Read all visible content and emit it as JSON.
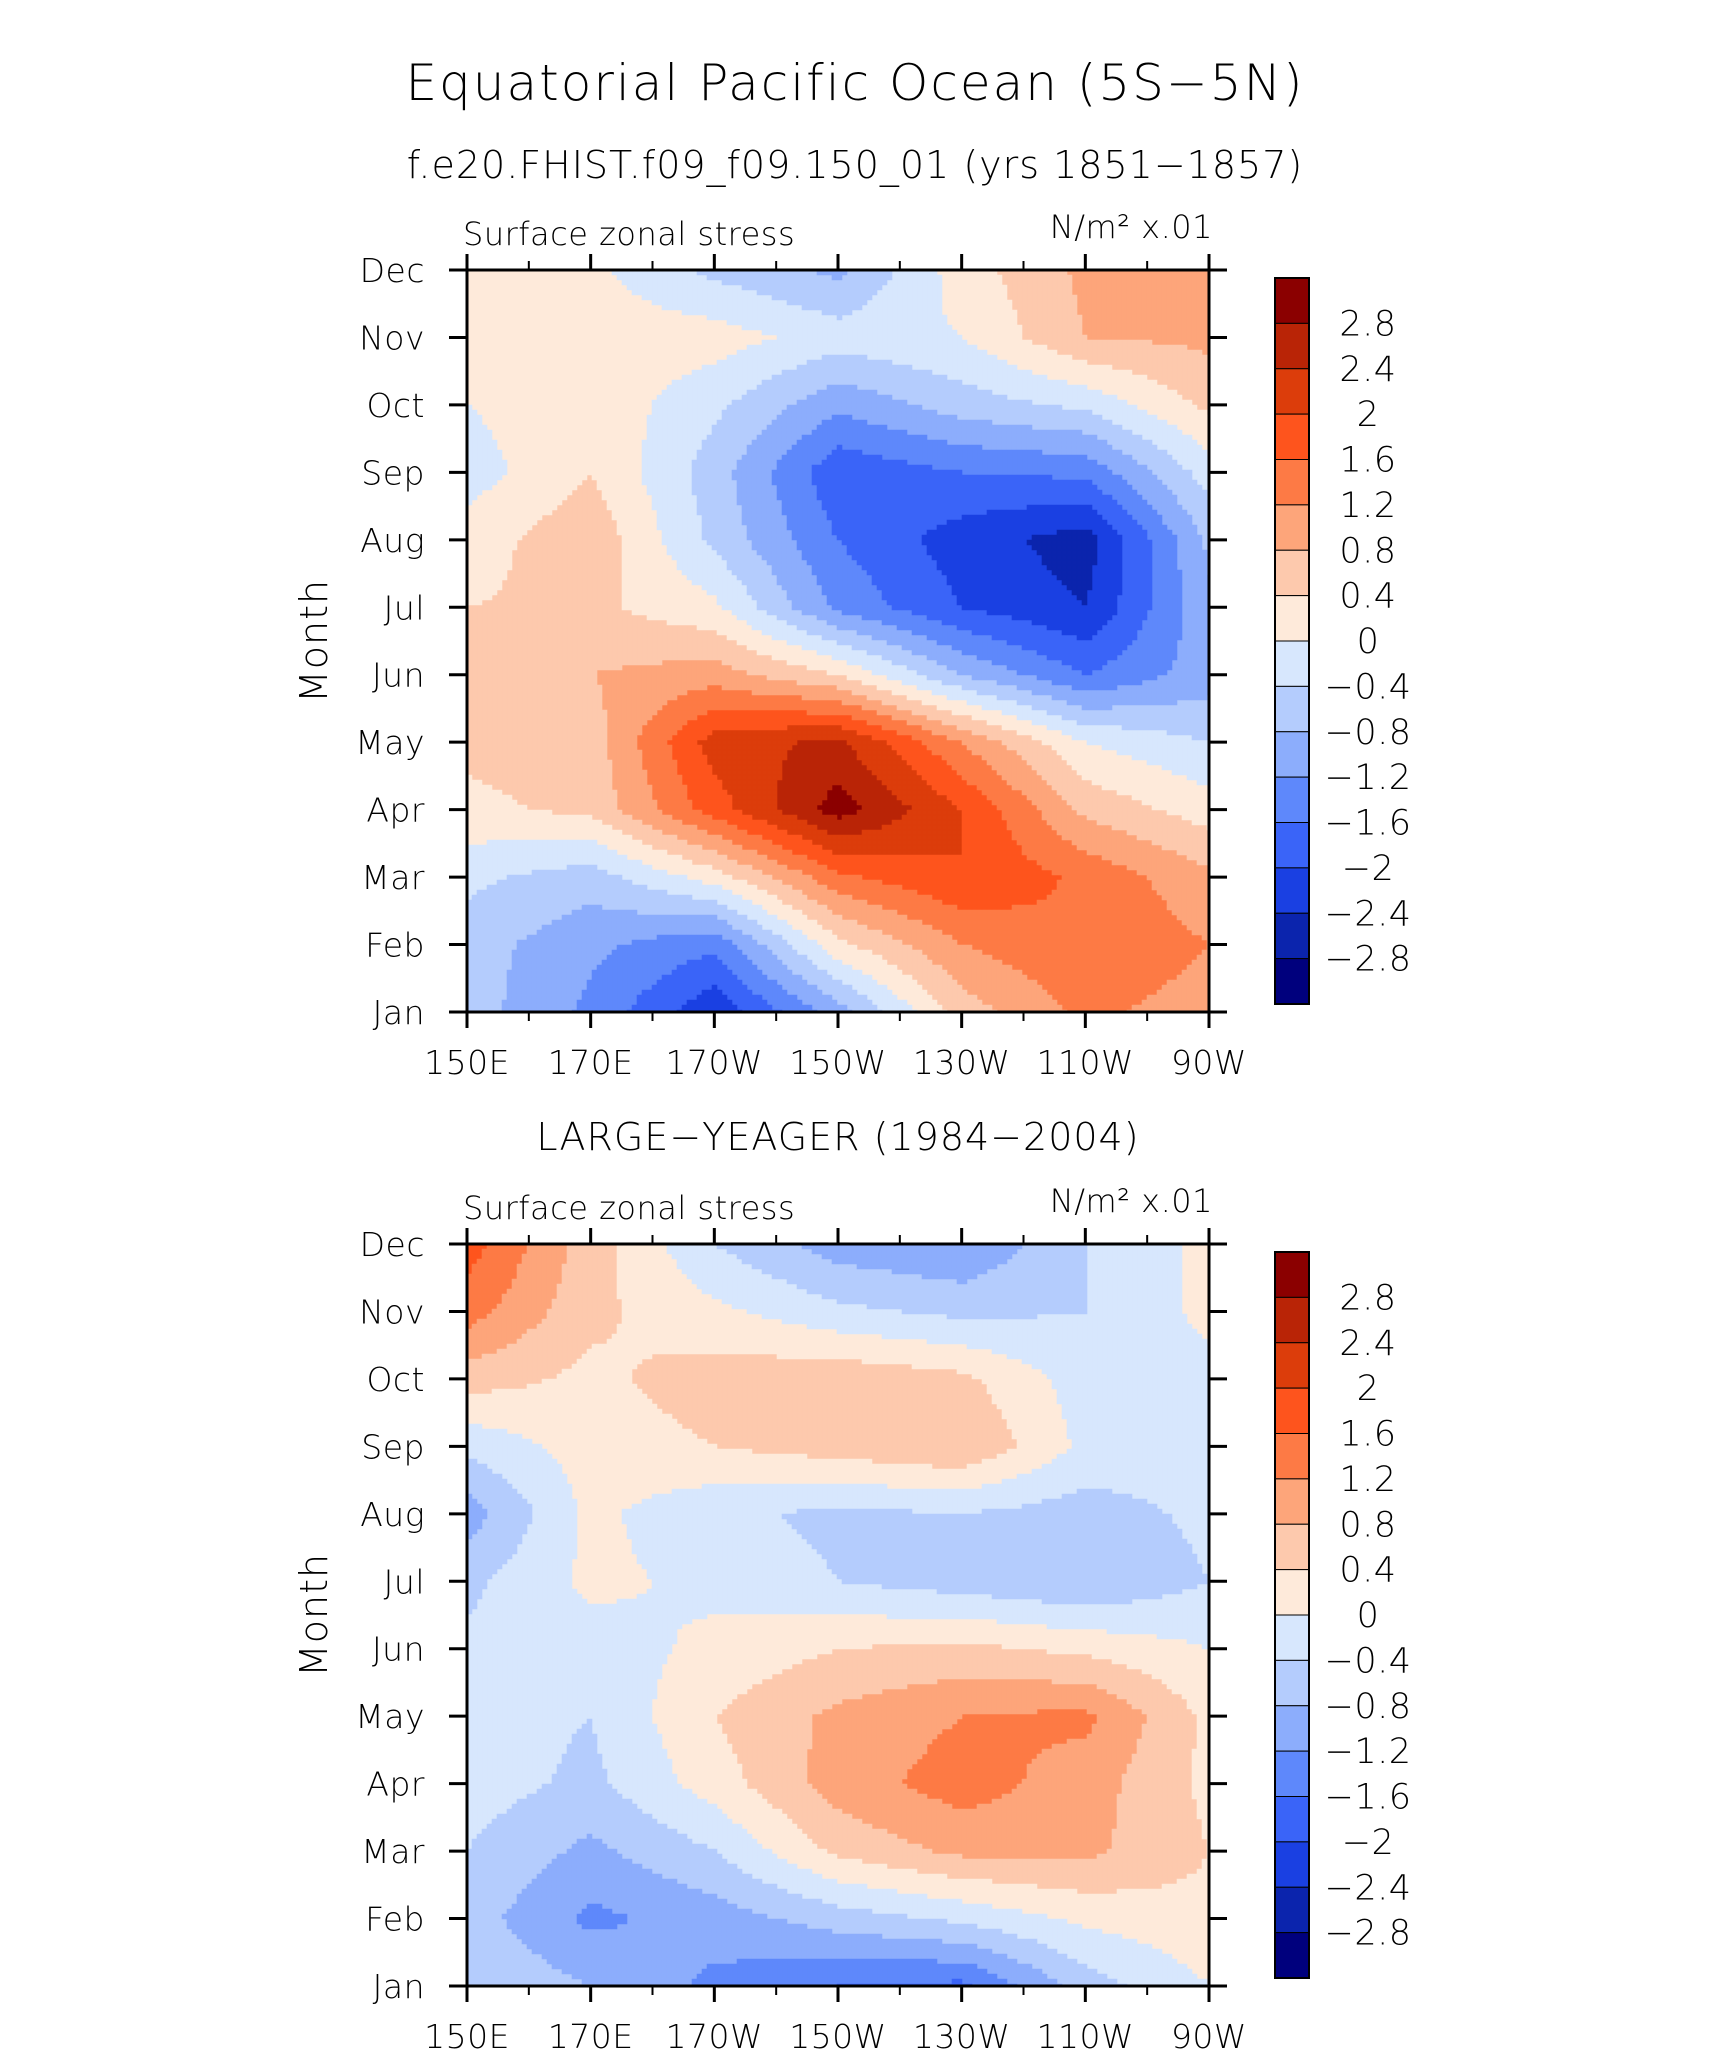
{
  "figure": {
    "title": "Equatorial Pacific Ocean (5S−5N)",
    "subtitle": "f.e20.FHIST.f09_f09.150_01 (yrs 1851−1857)"
  },
  "chart_data": [
    {
      "type": "heatmap",
      "panel_title": "",
      "left_label": "Surface zonal stress",
      "right_label": "N/m² x.01",
      "ylabel": "Month",
      "x": [
        150,
        170,
        190,
        210,
        230,
        250,
        270
      ],
      "x_tick_labels": [
        "150E",
        "170E",
        "170W",
        "150W",
        "130W",
        "110W",
        "90W"
      ],
      "y_tick_labels": [
        "Jan",
        "Feb",
        "Mar",
        "Apr",
        "May",
        "Jun",
        "Jul",
        "Aug",
        "Sep",
        "Oct",
        "Nov",
        "Dec"
      ],
      "colorbar_levels": [
        "2.8",
        "2.4",
        "2",
        "1.6",
        "1.2",
        "0.8",
        "0.4",
        "0",
        "−0.4",
        "−0.8",
        "−1.2",
        "−1.6",
        "−2",
        "−2.4",
        "−2.8"
      ],
      "colorbar_colors": [
        "#8b0000",
        "#b92406",
        "#dc3d0b",
        "#fe541d",
        "#fd7a45",
        "#fda57a",
        "#fdc9ad",
        "#feeada",
        "#d7e7fd",
        "#b4ccfd",
        "#8cadfc",
        "#5e88fb",
        "#3a64f8",
        "#1a40e2",
        "#0b24ad",
        "#00007d"
      ],
      "values": [
        [
          -0.6,
          -1.3,
          -2.3,
          -1.0,
          0.6,
          1.3,
          1.0
        ],
        [
          -0.6,
          -1.1,
          -1.5,
          0.3,
          1.2,
          1.6,
          1.2
        ],
        [
          -0.3,
          -0.6,
          0.2,
          1.5,
          2.0,
          1.5,
          0.9
        ],
        [
          0.3,
          0.5,
          1.8,
          3.0,
          2.0,
          0.7,
          0.2
        ],
        [
          0.5,
          0.6,
          2.2,
          2.5,
          1.2,
          0.0,
          -0.4
        ],
        [
          0.6,
          0.8,
          1.0,
          0.4,
          -0.8,
          -1.6,
          -1.0
        ],
        [
          0.4,
          0.5,
          0.1,
          -1.3,
          -2.0,
          -2.4,
          -0.9
        ],
        [
          0.2,
          0.7,
          -0.5,
          -1.6,
          -2.2,
          -2.6,
          -0.7
        ],
        [
          -0.2,
          0.4,
          -0.6,
          -1.9,
          -1.6,
          -1.5,
          -0.2
        ],
        [
          0.0,
          0.3,
          -0.3,
          -1.1,
          -0.6,
          -0.3,
          0.5
        ],
        [
          0.0,
          0.2,
          0.2,
          -0.2,
          0.0,
          0.8,
          0.9
        ],
        [
          0.1,
          0.1,
          -0.5,
          -0.9,
          0.2,
          0.9,
          0.8
        ]
      ]
    },
    {
      "type": "heatmap",
      "panel_title": "LARGE−YEAGER (1984−2004)",
      "left_label": "Surface zonal stress",
      "right_label": "N/m² x.01",
      "ylabel": "Month",
      "x": [
        150,
        170,
        190,
        210,
        230,
        250,
        270
      ],
      "x_tick_labels": [
        "150E",
        "170E",
        "170W",
        "150W",
        "130W",
        "110W",
        "90W"
      ],
      "y_tick_labels": [
        "Jan",
        "Feb",
        "Mar",
        "Apr",
        "May",
        "Jun",
        "Jul",
        "Aug",
        "Sep",
        "Oct",
        "Nov",
        "Dec"
      ],
      "colorbar_levels": [
        "2.8",
        "2.4",
        "2",
        "1.6",
        "1.2",
        "0.8",
        "0.4",
        "0",
        "−0.4",
        "−0.8",
        "−1.2",
        "−1.6",
        "−2",
        "−2.4",
        "−2.8"
      ],
      "colorbar_colors": [
        "#8b0000",
        "#b92406",
        "#dc3d0b",
        "#fe541d",
        "#fd7a45",
        "#fda57a",
        "#fdc9ad",
        "#feeada",
        "#d7e7fd",
        "#b4ccfd",
        "#8cadfc",
        "#5e88fb",
        "#3a64f8",
        "#1a40e2",
        "#0b24ad",
        "#00007d"
      ],
      "values": [
        [
          -0.4,
          -0.8,
          -1.3,
          -1.6,
          -1.7,
          -0.6,
          0.0
        ],
        [
          -0.6,
          -1.3,
          -1.0,
          -0.6,
          -0.3,
          0.1,
          0.3
        ],
        [
          -0.4,
          -0.9,
          -0.4,
          0.5,
          0.9,
          0.9,
          0.4
        ],
        [
          -0.2,
          -0.5,
          0.2,
          1.0,
          1.4,
          1.0,
          0.3
        ],
        [
          -0.2,
          -0.4,
          0.4,
          0.9,
          1.2,
          1.3,
          0.3
        ],
        [
          -0.3,
          -0.2,
          0.1,
          0.4,
          0.5,
          0.3,
          0.0
        ],
        [
          -0.5,
          0.1,
          -0.1,
          -0.4,
          -0.6,
          -0.8,
          -0.4
        ],
        [
          -1.0,
          0.1,
          -0.3,
          -0.5,
          -0.4,
          -0.6,
          -0.3
        ],
        [
          -0.3,
          0.2,
          0.4,
          0.6,
          0.8,
          -0.1,
          -0.2
        ],
        [
          0.6,
          0.3,
          0.6,
          0.7,
          0.5,
          -0.2,
          -0.1
        ],
        [
          1.4,
          0.5,
          0.1,
          -0.3,
          -0.5,
          -0.4,
          0.1
        ],
        [
          1.8,
          0.6,
          -0.4,
          -1.0,
          -1.2,
          -0.4,
          0.1
        ]
      ]
    }
  ]
}
